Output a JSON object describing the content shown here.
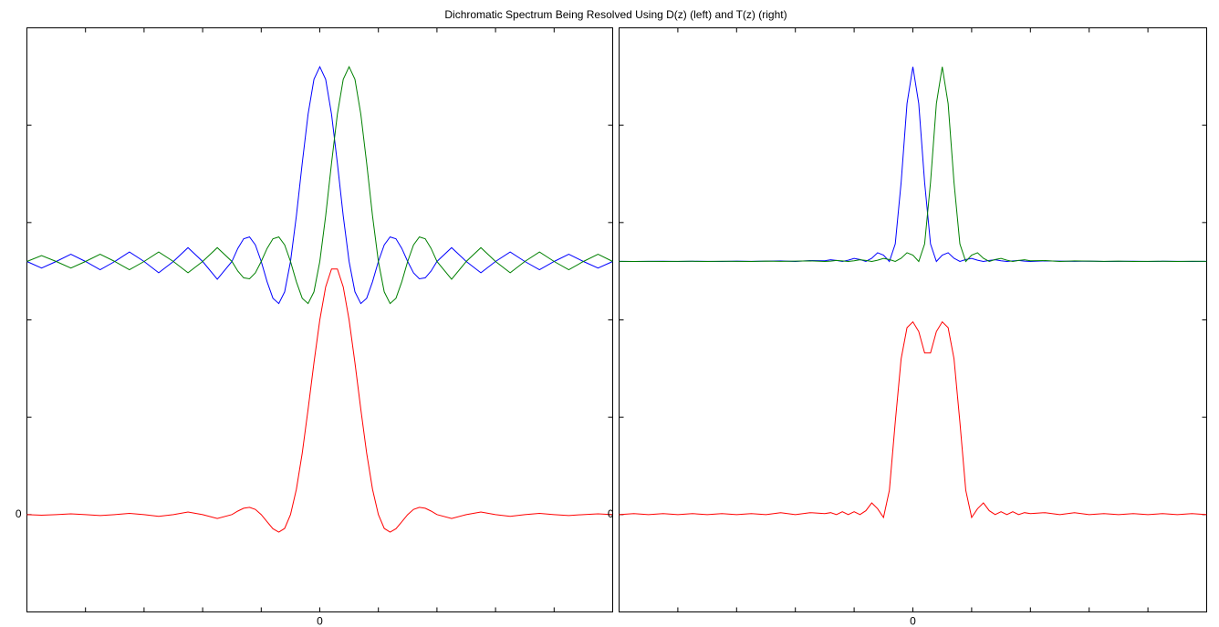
{
  "title": "Dichromatic Spectrum Being Resolved Using D(z) (left) and T(z) (right)",
  "chart_data": [
    {
      "type": "line",
      "x": [
        -5,
        -4.75,
        -4.5,
        -4.25,
        -4,
        -3.75,
        -3.5,
        -3.25,
        -3,
        -2.75,
        -2.5,
        -2.25,
        -2,
        -1.75,
        -1.5,
        -1.4,
        -1.3,
        -1.2,
        -1.1,
        -1,
        -0.9,
        -0.8,
        -0.7,
        -0.6,
        -0.5,
        -0.4,
        -0.3,
        -0.2,
        -0.1,
        0,
        0.1,
        0.2,
        0.3,
        0.4,
        0.5,
        0.6,
        0.7,
        0.8,
        0.9,
        1,
        1.1,
        1.2,
        1.3,
        1.4,
        1.5,
        1.6,
        1.7,
        1.8,
        1.9,
        2,
        2.25,
        2.5,
        2.75,
        3,
        3.25,
        3.5,
        3.75,
        4,
        4.25,
        4.5,
        4.75,
        5
      ],
      "series": [
        {
          "color": "#0000ff",
          "values": [
            2.6,
            2.533,
            2.6,
            2.675,
            2.6,
            2.515,
            2.6,
            2.698,
            2.6,
            2.484,
            2.6,
            2.742,
            2.6,
            2.418,
            2.6,
            2.734,
            2.833,
            2.852,
            2.77,
            2.6,
            2.392,
            2.222,
            2.168,
            2.288,
            2.6,
            3.068,
            3.609,
            4.114,
            4.471,
            4.6,
            4.471,
            4.114,
            3.609,
            3.068,
            2.6,
            2.288,
            2.168,
            2.222,
            2.392,
            2.6,
            2.77,
            2.852,
            2.833,
            2.734,
            2.6,
            2.483,
            2.422,
            2.432,
            2.502,
            2.6,
            2.742,
            2.6,
            2.484,
            2.6,
            2.698,
            2.6,
            2.515,
            2.6,
            2.675,
            2.6,
            2.533,
            2.6
          ]
        },
        {
          "color": "#008000",
          "values": [
            2.6,
            2.661,
            2.6,
            2.533,
            2.6,
            2.675,
            2.6,
            2.515,
            2.6,
            2.698,
            2.6,
            2.484,
            2.6,
            2.742,
            2.6,
            2.502,
            2.432,
            2.422,
            2.483,
            2.6,
            2.734,
            2.833,
            2.852,
            2.77,
            2.6,
            2.392,
            2.222,
            2.168,
            2.288,
            2.6,
            3.068,
            3.609,
            4.114,
            4.471,
            4.6,
            4.471,
            4.114,
            3.609,
            3.068,
            2.6,
            2.288,
            2.168,
            2.222,
            2.392,
            2.6,
            2.77,
            2.852,
            2.833,
            2.734,
            2.6,
            2.418,
            2.6,
            2.742,
            2.6,
            2.484,
            2.6,
            2.698,
            2.6,
            2.515,
            2.6,
            2.675,
            2.6
          ]
        },
        {
          "color": "#ff0000",
          "values": [
            0,
            -0.006,
            0,
            0.008,
            0,
            -0.01,
            0,
            0.013,
            0,
            -0.018,
            0,
            0.026,
            0,
            -0.04,
            0,
            0.036,
            0.065,
            0.074,
            0.053,
            0,
            -0.074,
            -0.145,
            -0.18,
            -0.142,
            0,
            0.26,
            0.631,
            1.082,
            1.559,
            2,
            2.339,
            2.523,
            2.523,
            2.339,
            2,
            1.559,
            1.082,
            0.631,
            0.26,
            0,
            -0.142,
            -0.18,
            -0.145,
            -0.074,
            0,
            0.053,
            0.074,
            0.065,
            0.036,
            0,
            -0.04,
            0,
            0.026,
            0,
            -0.018,
            0,
            0.013,
            0,
            -0.01,
            0,
            0.008,
            0
          ]
        }
      ],
      "xlim": [
        -5,
        5
      ],
      "xticks": [
        0
      ],
      "xticks_minor": [
        -4,
        -3,
        -2,
        -1,
        1,
        2,
        3,
        4
      ],
      "ylim": [
        -1,
        5
      ],
      "yticks": [
        0
      ],
      "yticks_minor": [
        1,
        2,
        3,
        4
      ]
    },
    {
      "type": "line",
      "x": [
        -5,
        -4.75,
        -4.5,
        -4.25,
        -4,
        -3.75,
        -3.5,
        -3.25,
        -3,
        -2.75,
        -2.5,
        -2.25,
        -2,
        -1.75,
        -1.5,
        -1.4,
        -1.3,
        -1.2,
        -1.1,
        -1,
        -0.9,
        -0.8,
        -0.7,
        -0.6,
        -0.5,
        -0.4,
        -0.3,
        -0.2,
        -0.1,
        0,
        0.1,
        0.2,
        0.3,
        0.4,
        0.5,
        0.6,
        0.7,
        0.8,
        0.9,
        1,
        1.1,
        1.2,
        1.3,
        1.4,
        1.5,
        1.6,
        1.7,
        1.8,
        1.9,
        2,
        2.25,
        2.5,
        2.75,
        3,
        3.25,
        3.5,
        3.75,
        4,
        4.25,
        4.5,
        4.75,
        5
      ],
      "series": [
        {
          "color": "#0000ff",
          "values": [
            2.601,
            2.6,
            2.601,
            2.602,
            2.6,
            2.602,
            2.601,
            2.6,
            2.604,
            2.601,
            2.603,
            2.606,
            2.6,
            2.609,
            2.607,
            2.617,
            2.61,
            2.6,
            2.613,
            2.632,
            2.62,
            2.6,
            2.633,
            2.69,
            2.665,
            2.6,
            2.78,
            3.411,
            4.221,
            4.6,
            4.221,
            3.411,
            2.78,
            2.6,
            2.665,
            2.69,
            2.633,
            2.6,
            2.62,
            2.632,
            2.613,
            2.6,
            2.61,
            2.617,
            2.607,
            2.6,
            2.606,
            2.61,
            2.604,
            2.6,
            2.606,
            2.603,
            2.601,
            2.604,
            2.6,
            2.601,
            2.602,
            2.6,
            2.602,
            2.601,
            2.6,
            2.601
          ]
        },
        {
          "color": "#008000",
          "values": [
            2.601,
            2.6,
            2.601,
            2.6,
            2.601,
            2.602,
            2.6,
            2.602,
            2.601,
            2.6,
            2.604,
            2.601,
            2.603,
            2.606,
            2.6,
            2.604,
            2.61,
            2.606,
            2.6,
            2.607,
            2.617,
            2.61,
            2.6,
            2.613,
            2.632,
            2.62,
            2.6,
            2.633,
            2.69,
            2.665,
            2.6,
            2.78,
            3.411,
            4.221,
            4.6,
            4.221,
            3.411,
            2.78,
            2.6,
            2.665,
            2.69,
            2.633,
            2.6,
            2.62,
            2.632,
            2.613,
            2.6,
            2.61,
            2.617,
            2.607,
            2.609,
            2.6,
            2.606,
            2.603,
            2.601,
            2.604,
            2.6,
            2.601,
            2.602,
            2.6,
            2.602,
            2.601
          ]
        },
        {
          "color": "#ff0000",
          "values": [
            0,
            0.01,
            0,
            0.01,
            0,
            0.01,
            0,
            0.01,
            0,
            0.01,
            0,
            0.02,
            0,
            0.02,
            0.01,
            0.02,
            0,
            0.03,
            0,
            0.03,
            0,
            0.04,
            0.12,
            0.06,
            -0.03,
            0.25,
            0.95,
            1.6,
            1.92,
            1.98,
            1.88,
            1.66,
            1.66,
            1.88,
            1.98,
            1.92,
            1.6,
            0.95,
            0.25,
            -0.03,
            0.06,
            0.12,
            0.04,
            0,
            0.03,
            0,
            0.03,
            0,
            0.02,
            0.01,
            0.02,
            0,
            0.02,
            0,
            0.01,
            0,
            0.01,
            0,
            0.01,
            0,
            0.01,
            0
          ]
        }
      ],
      "xlim": [
        -5,
        5
      ],
      "xticks": [
        0
      ],
      "xticks_minor": [
        -4,
        -3,
        -2,
        -1,
        1,
        2,
        3,
        4
      ],
      "ylim": [
        -1,
        5
      ],
      "yticks": [
        0
      ],
      "yticks_minor": [
        1,
        2,
        3,
        4
      ]
    }
  ]
}
